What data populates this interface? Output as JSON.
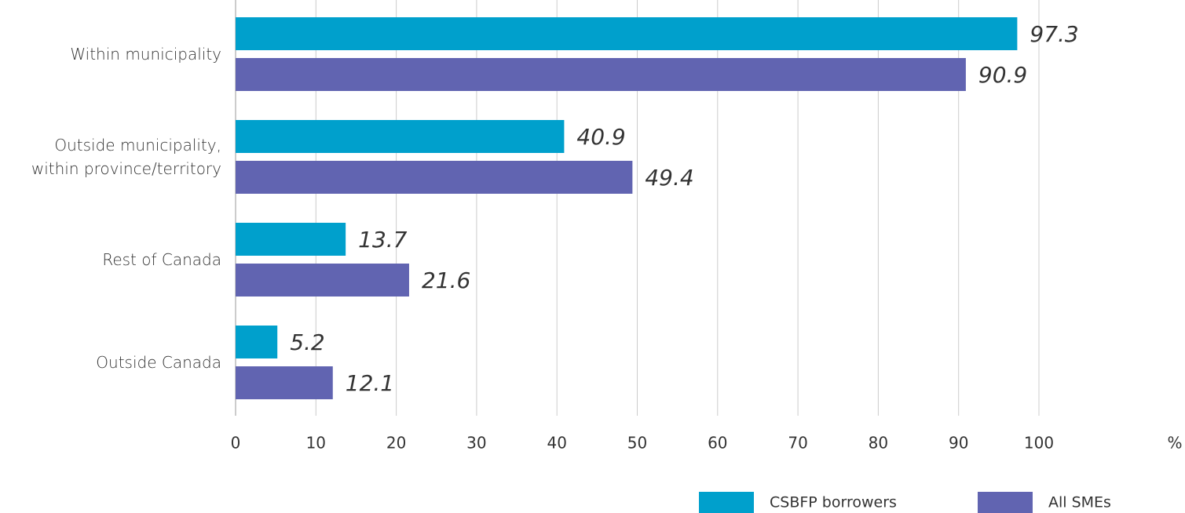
{
  "chart_data": {
    "type": "bar",
    "orientation": "horizontal",
    "categories": [
      "Within municipality",
      "Outside municipality,\nwithin province/territory",
      "Rest of Canada",
      "Outside Canada"
    ],
    "series": [
      {
        "name": "CSBFP borrowers",
        "color": "#00a0cc",
        "values": [
          97.3,
          40.9,
          13.7,
          5.2
        ]
      },
      {
        "name": "All SMEs",
        "color": "#6164b1",
        "values": [
          90.9,
          49.4,
          21.6,
          12.1
        ]
      }
    ],
    "xlabel": "%",
    "xlim": [
      0,
      100
    ],
    "xticks": [
      0,
      10,
      20,
      30,
      40,
      50,
      60,
      70,
      80,
      90,
      100
    ],
    "grid": true,
    "legend": "bottom-right"
  }
}
